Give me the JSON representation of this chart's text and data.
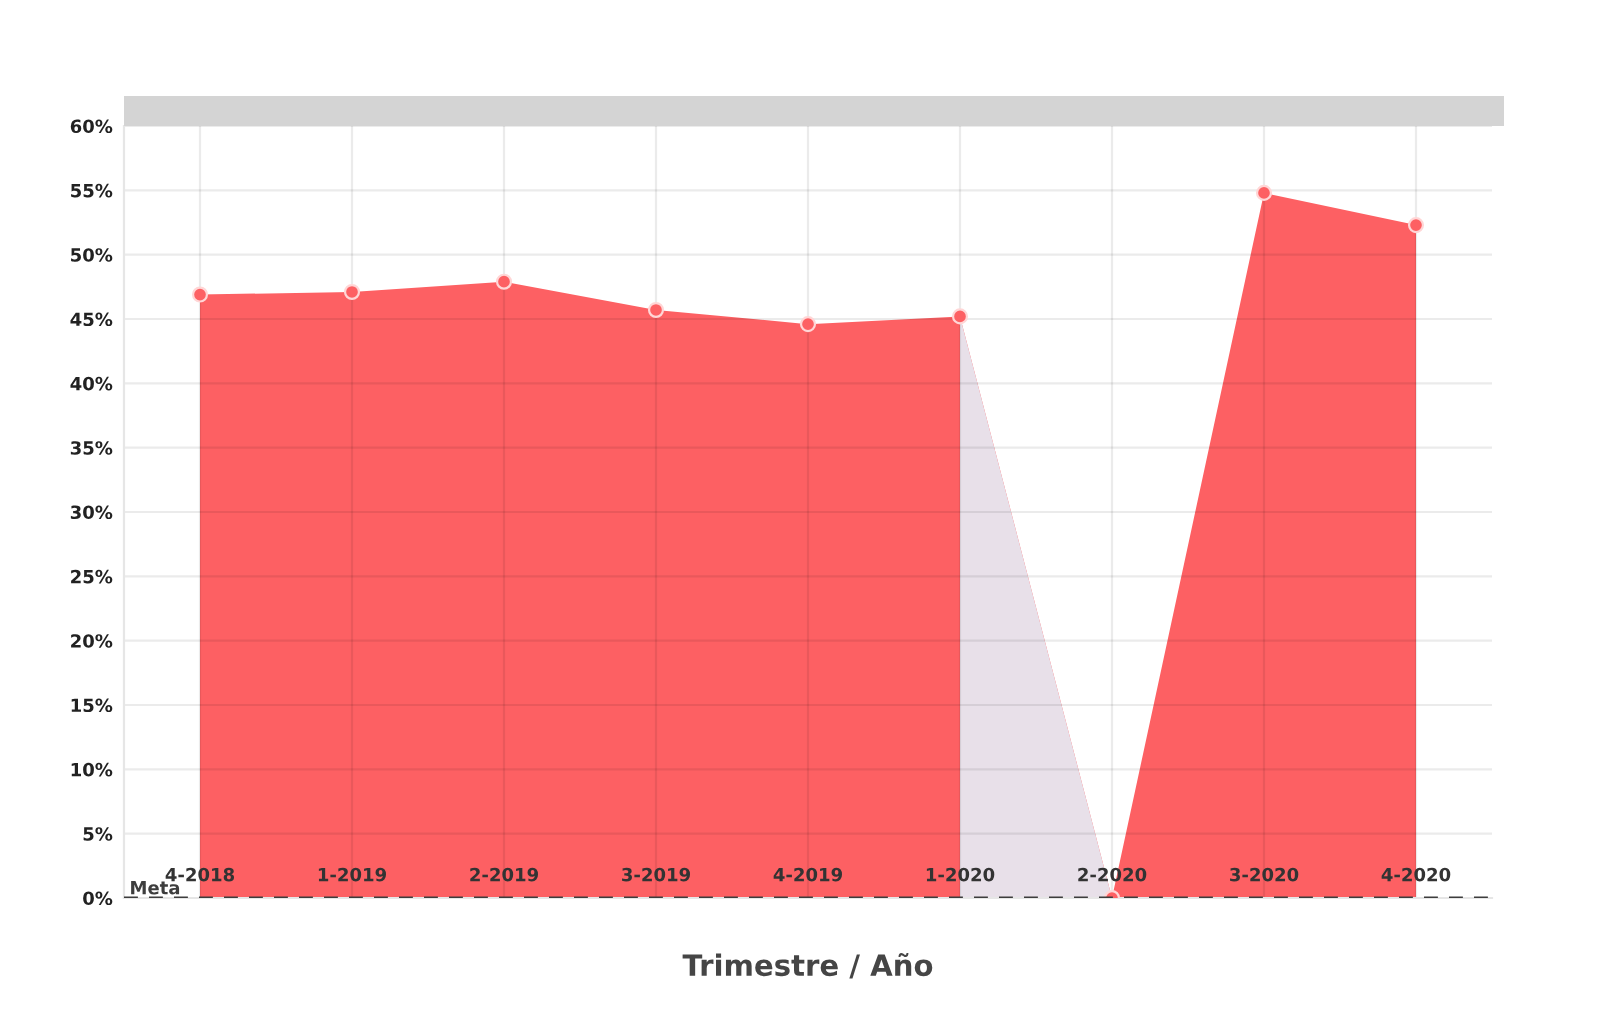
{
  "chart_data": {
    "type": "area",
    "xlabel": "Trimestre / Año",
    "categories": [
      "4-2018",
      "1-2019",
      "2-2019",
      "3-2019",
      "4-2019",
      "1-2020",
      "2-2020",
      "3-2020",
      "4-2020"
    ],
    "series": [
      {
        "color": "#fd6063",
        "values": [
          46.9,
          47.1,
          47.9,
          45.7,
          44.6,
          45.2,
          0,
          54.8,
          52.3
        ]
      },
      {
        "color": "#e8e0e9",
        "marker": "none",
        "values": [
          null,
          null,
          null,
          null,
          null,
          45.2,
          0,
          null,
          null
        ]
      }
    ],
    "ylim": [
      0,
      60
    ],
    "yticks": [
      {
        "value": 0,
        "label": "0%"
      },
      {
        "value": 5,
        "label": "5%"
      },
      {
        "value": 10,
        "label": "10%"
      },
      {
        "value": 15,
        "label": "15%"
      },
      {
        "value": 20,
        "label": "20%"
      },
      {
        "value": 25,
        "label": "25%"
      },
      {
        "value": 30,
        "label": "30%"
      },
      {
        "value": 35,
        "label": "35%"
      },
      {
        "value": 40,
        "label": "40%"
      },
      {
        "value": 45,
        "label": "45%"
      },
      {
        "value": 50,
        "label": "50%"
      },
      {
        "value": 55,
        "label": "55%"
      },
      {
        "value": 60,
        "label": "60%"
      }
    ],
    "grid": true,
    "marker": "circle",
    "ref_lines": [
      {
        "axis": "y",
        "value": 0,
        "label": "Meta",
        "color": "#3d3d3d",
        "line_style": "dashed"
      }
    ]
  }
}
